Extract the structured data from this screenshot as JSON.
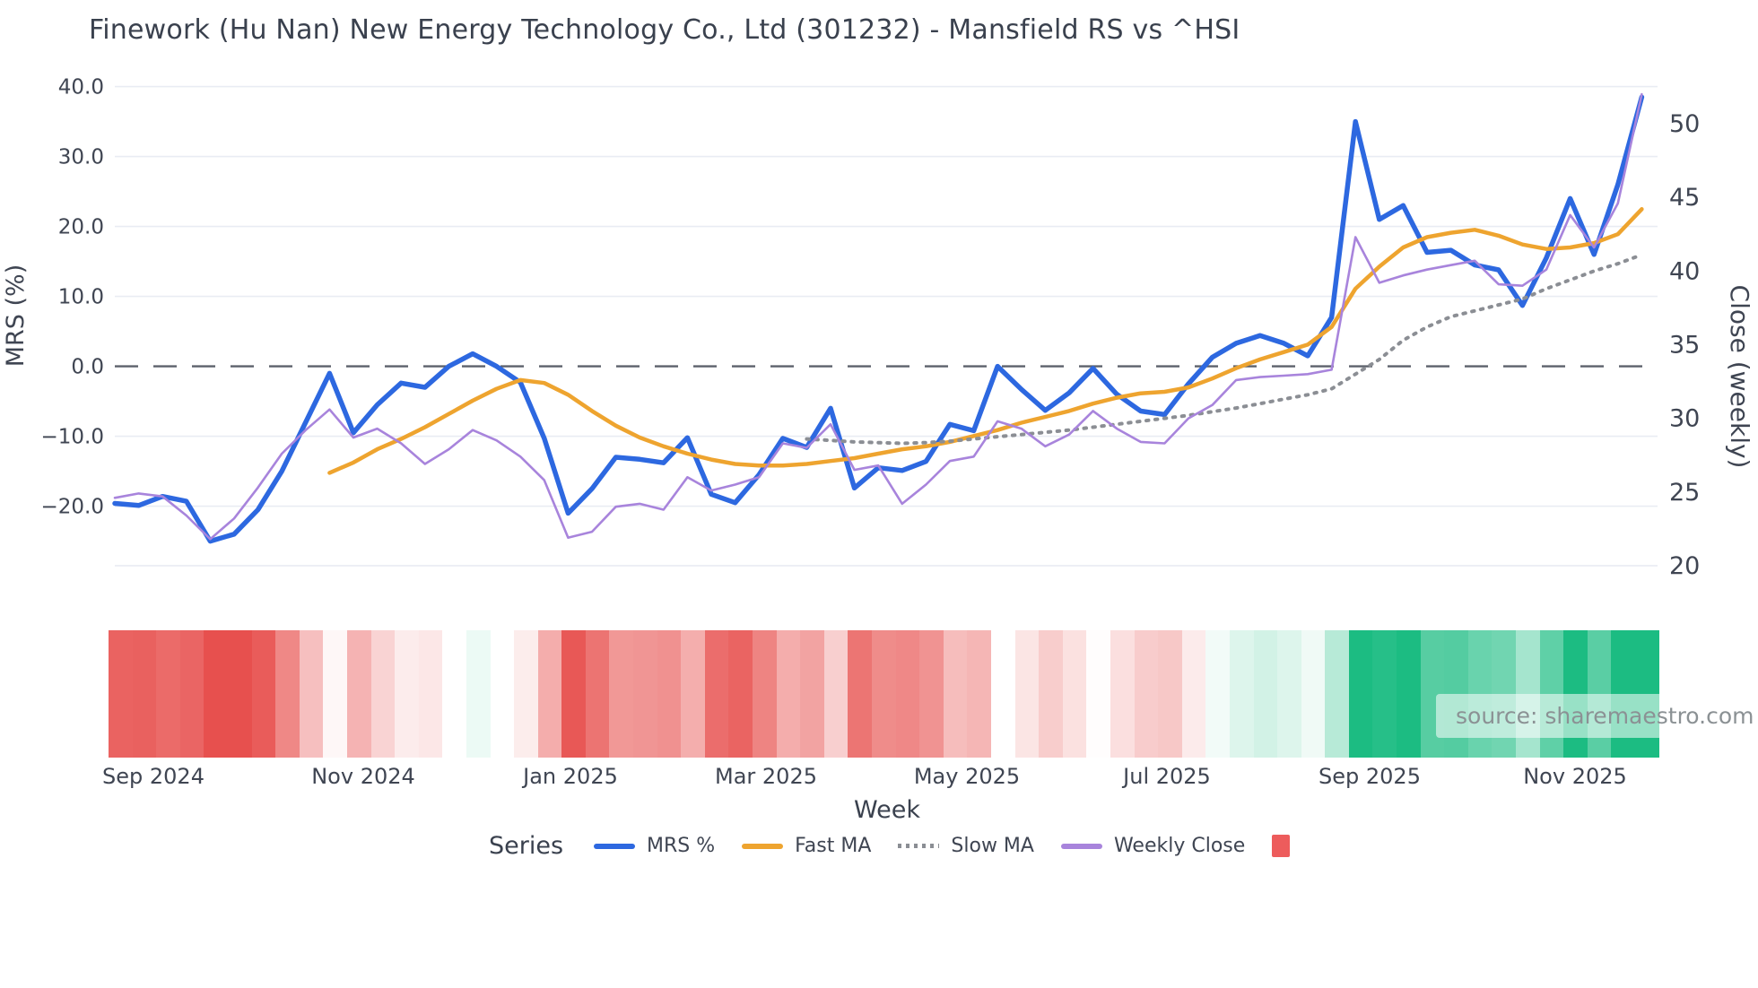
{
  "title": "Finework (Hu Nan) New Energy Technology Co., Ltd (301232) - Mansfield RS vs ^HSI",
  "source_note": "source: sharemaestro.com",
  "axes": {
    "left": {
      "title": "MRS (%)",
      "ticks": [
        40,
        30,
        20,
        10,
        0,
        -10,
        -20
      ],
      "tick_labels": [
        "40.0",
        "30.0",
        "20.0",
        "10.0",
        "0.0",
        "−10.0",
        "−20.0"
      ]
    },
    "right": {
      "title": "Close (weekly)",
      "ticks": [
        50,
        45,
        40,
        35,
        30,
        25,
        20
      ],
      "tick_labels": [
        "50",
        "45",
        "40",
        "35",
        "30",
        "25",
        "20"
      ]
    },
    "x": {
      "title": "Week",
      "tick_labels": [
        "Sep 2024",
        "Nov 2024",
        "Jan 2025",
        "Mar 2025",
        "May 2025",
        "Jul 2025",
        "Sep 2025",
        "Nov 2025"
      ],
      "tick_weeks": [
        1.6,
        10.4,
        19.1,
        27.3,
        35.7,
        44.1,
        52.6,
        61.2
      ]
    }
  },
  "legend": {
    "title": "Series",
    "items": [
      {
        "label": "MRS %",
        "color": "#2d68e0",
        "style": "solid"
      },
      {
        "label": "Fast MA",
        "color": "#eea42f",
        "style": "solid"
      },
      {
        "label": "Slow MA",
        "color": "#8b8e94",
        "style": "dotted"
      },
      {
        "label": "Weekly Close",
        "color": "#a884dc",
        "style": "solid"
      },
      {
        "label": "",
        "color": "#ed5c5c",
        "style": "square"
      }
    ]
  },
  "chart_data": {
    "type": "line",
    "title": "Finework (Hu Nan) New Energy Technology Co., Ltd (301232) - Mansfield RS vs ^HSI",
    "xlabel": "Week",
    "ylabel_left": "MRS (%)",
    "ylabel_right": "Close (weekly)",
    "weeks": 65,
    "left_range": [
      -25,
      40
    ],
    "right_range": [
      20,
      52
    ],
    "zero_line": true,
    "grid": true,
    "legend_position": "bottom",
    "series": [
      {
        "name": "MRS %",
        "axis": "left",
        "color": "#2d68e0",
        "width": 5.5,
        "dash": "",
        "start_week": 0,
        "values": [
          -19.6,
          -19.9,
          -18.6,
          -19.3,
          -25.0,
          -24.0,
          -20.5,
          -15.0,
          -8.0,
          -1.0,
          -9.5,
          -5.5,
          -2.4,
          -3.0,
          0.0,
          1.8,
          0.0,
          -2.3,
          -10.3,
          -21.0,
          -17.5,
          -13.0,
          -13.3,
          -13.8,
          -10.2,
          -18.3,
          -19.5,
          -15.5,
          -10.3,
          -11.6,
          -6.0,
          -17.4,
          -14.5,
          -14.9,
          -13.6,
          -8.3,
          -9.2,
          0.0,
          -3.3,
          -6.3,
          -3.8,
          -0.3,
          -4.0,
          -6.4,
          -6.9,
          -2.5,
          1.3,
          3.3,
          4.4,
          3.3,
          1.5,
          7.0,
          35.0,
          21.0,
          23.0,
          16.3,
          16.6,
          14.5,
          13.8,
          8.7,
          15.5,
          24.0,
          16.0,
          26.0,
          38.5
        ]
      },
      {
        "name": "Fast MA",
        "axis": "right",
        "color": "#eea42f",
        "width": 4.5,
        "dash": "",
        "start_week": 9,
        "values": [
          26.3,
          27.0,
          27.9,
          28.6,
          29.4,
          30.3,
          31.2,
          32.0,
          32.6,
          32.4,
          31.6,
          30.5,
          29.5,
          28.7,
          28.1,
          27.6,
          27.2,
          26.9,
          26.8,
          26.8,
          26.9,
          27.1,
          27.3,
          27.6,
          27.9,
          28.1,
          28.4,
          28.8,
          29.2,
          29.7,
          30.1,
          30.5,
          31.0,
          31.4,
          31.7,
          31.8,
          32.1,
          32.7,
          33.4,
          34.0,
          34.5,
          35.0,
          36.2,
          38.8,
          40.3,
          41.6,
          42.3,
          42.6,
          42.8,
          42.4,
          41.8,
          41.5,
          41.6,
          41.9,
          42.5,
          44.2
        ]
      },
      {
        "name": "Slow MA",
        "axis": "right",
        "color": "#8b8e94",
        "width": 4,
        "dash": "2.5 7.5",
        "start_week": 29,
        "values": [
          28.6,
          28.5,
          28.4,
          28.35,
          28.3,
          28.35,
          28.45,
          28.6,
          28.75,
          28.9,
          29.05,
          29.2,
          29.4,
          29.6,
          29.8,
          30.0,
          30.2,
          30.45,
          30.7,
          31.0,
          31.3,
          31.6,
          32.0,
          33.0,
          34.0,
          35.3,
          36.2,
          36.9,
          37.3,
          37.7,
          38.1,
          38.8,
          39.4,
          40.0,
          40.5,
          41.1
        ]
      },
      {
        "name": "Weekly Close",
        "axis": "right",
        "color": "#a884dc",
        "width": 2.6,
        "dash": "",
        "start_week": 0,
        "values": [
          24.6,
          24.9,
          24.7,
          23.4,
          21.8,
          23.2,
          25.3,
          27.6,
          29.2,
          30.6,
          28.7,
          29.3,
          28.3,
          26.9,
          27.9,
          29.2,
          28.5,
          27.4,
          25.8,
          21.9,
          22.3,
          24.0,
          24.2,
          23.8,
          26.0,
          25.1,
          25.5,
          26.0,
          28.3,
          28.0,
          29.6,
          26.5,
          26.8,
          24.2,
          25.5,
          27.1,
          27.4,
          29.8,
          29.3,
          28.1,
          28.9,
          30.5,
          29.3,
          28.4,
          28.3,
          30.0,
          30.9,
          32.6,
          32.8,
          32.9,
          33.0,
          33.3,
          42.3,
          39.2,
          39.7,
          40.1,
          40.4,
          40.7,
          39.1,
          39.0,
          40.1,
          43.8,
          41.6,
          44.6,
          52.0
        ]
      }
    ],
    "heatmap": {
      "basis": "weekly MRS % value (red = negative, green = positive, intensity = magnitude)",
      "negative_color": "#e7504e",
      "positive_color": "#1cbc82",
      "max_abs": 22
    },
    "style": {
      "grid_color": "#e9ecf3",
      "zero_line_color": "#5c616b",
      "text_color": "#3f4552"
    }
  }
}
